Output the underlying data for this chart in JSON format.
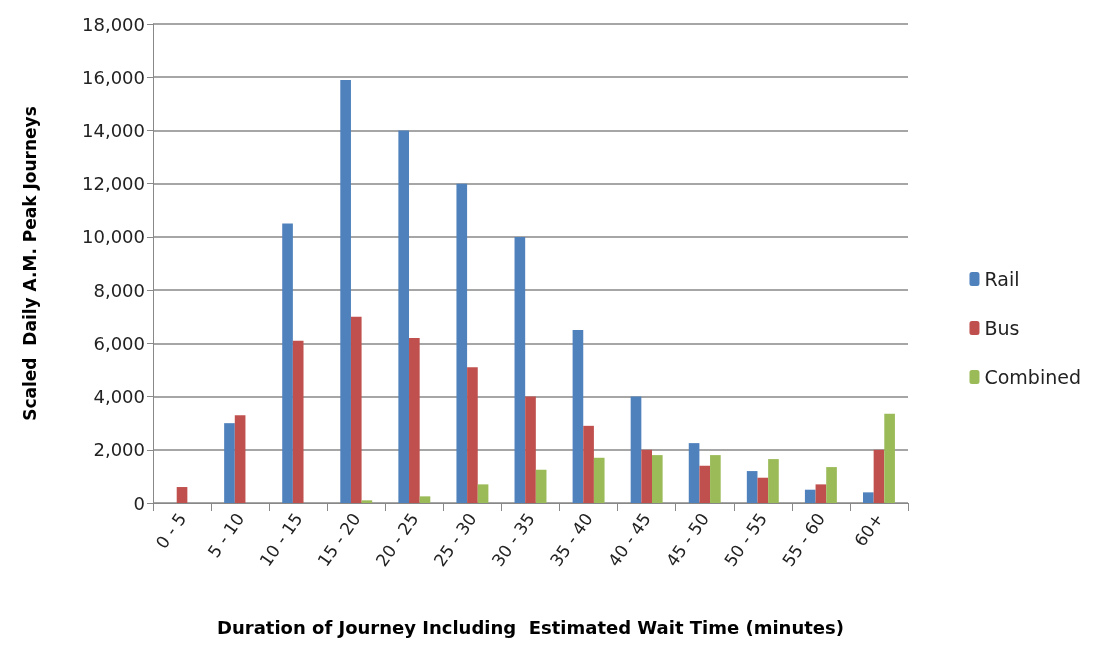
{
  "chart_data": {
    "type": "bar",
    "xlabel": "Duration of Journey Including  Estimated Wait Time (minutes)",
    "ylabel": "Scaled  Daily A.M. Peak Journeys",
    "categories": [
      "0 - 5",
      "5 - 10",
      "10 - 15",
      "15 - 20",
      "20 - 25",
      "25 - 30",
      "30 - 35",
      "35 - 40",
      "40 - 45",
      "45 - 50",
      "50 - 55",
      "55 - 60",
      "60+"
    ],
    "series": [
      {
        "name": "Rail",
        "color": "#4f81bd",
        "values": [
          0,
          3000,
          10500,
          15900,
          14000,
          12000,
          10000,
          6500,
          4000,
          2250,
          1200,
          500,
          400
        ]
      },
      {
        "name": "Bus",
        "color": "#c0504d",
        "values": [
          600,
          3300,
          6100,
          7000,
          6200,
          5100,
          4000,
          2900,
          2000,
          1400,
          950,
          700,
          2000
        ]
      },
      {
        "name": "Combined",
        "color": "#9bbb59",
        "values": [
          0,
          0,
          0,
          100,
          250,
          700,
          1250,
          1700,
          1800,
          1800,
          1650,
          1350,
          3350
        ]
      }
    ],
    "ylim": [
      0,
      18000
    ],
    "yticks": [
      0,
      {
        "value": 2000,
        "label": "2,000"
      },
      {
        "value": 4000,
        "label": "4,000"
      },
      {
        "value": 6000,
        "label": "6,000"
      },
      {
        "value": 8000,
        "label": "8,000"
      },
      {
        "value": 10000,
        "label": "10,000"
      },
      {
        "value": 12000,
        "label": "12,000"
      },
      {
        "value": 14000,
        "label": "14,000"
      },
      {
        "value": 16000,
        "label": "16,000"
      },
      {
        "value": 18000,
        "label": "18,000"
      }
    ],
    "grid": "y",
    "legend": "right"
  }
}
